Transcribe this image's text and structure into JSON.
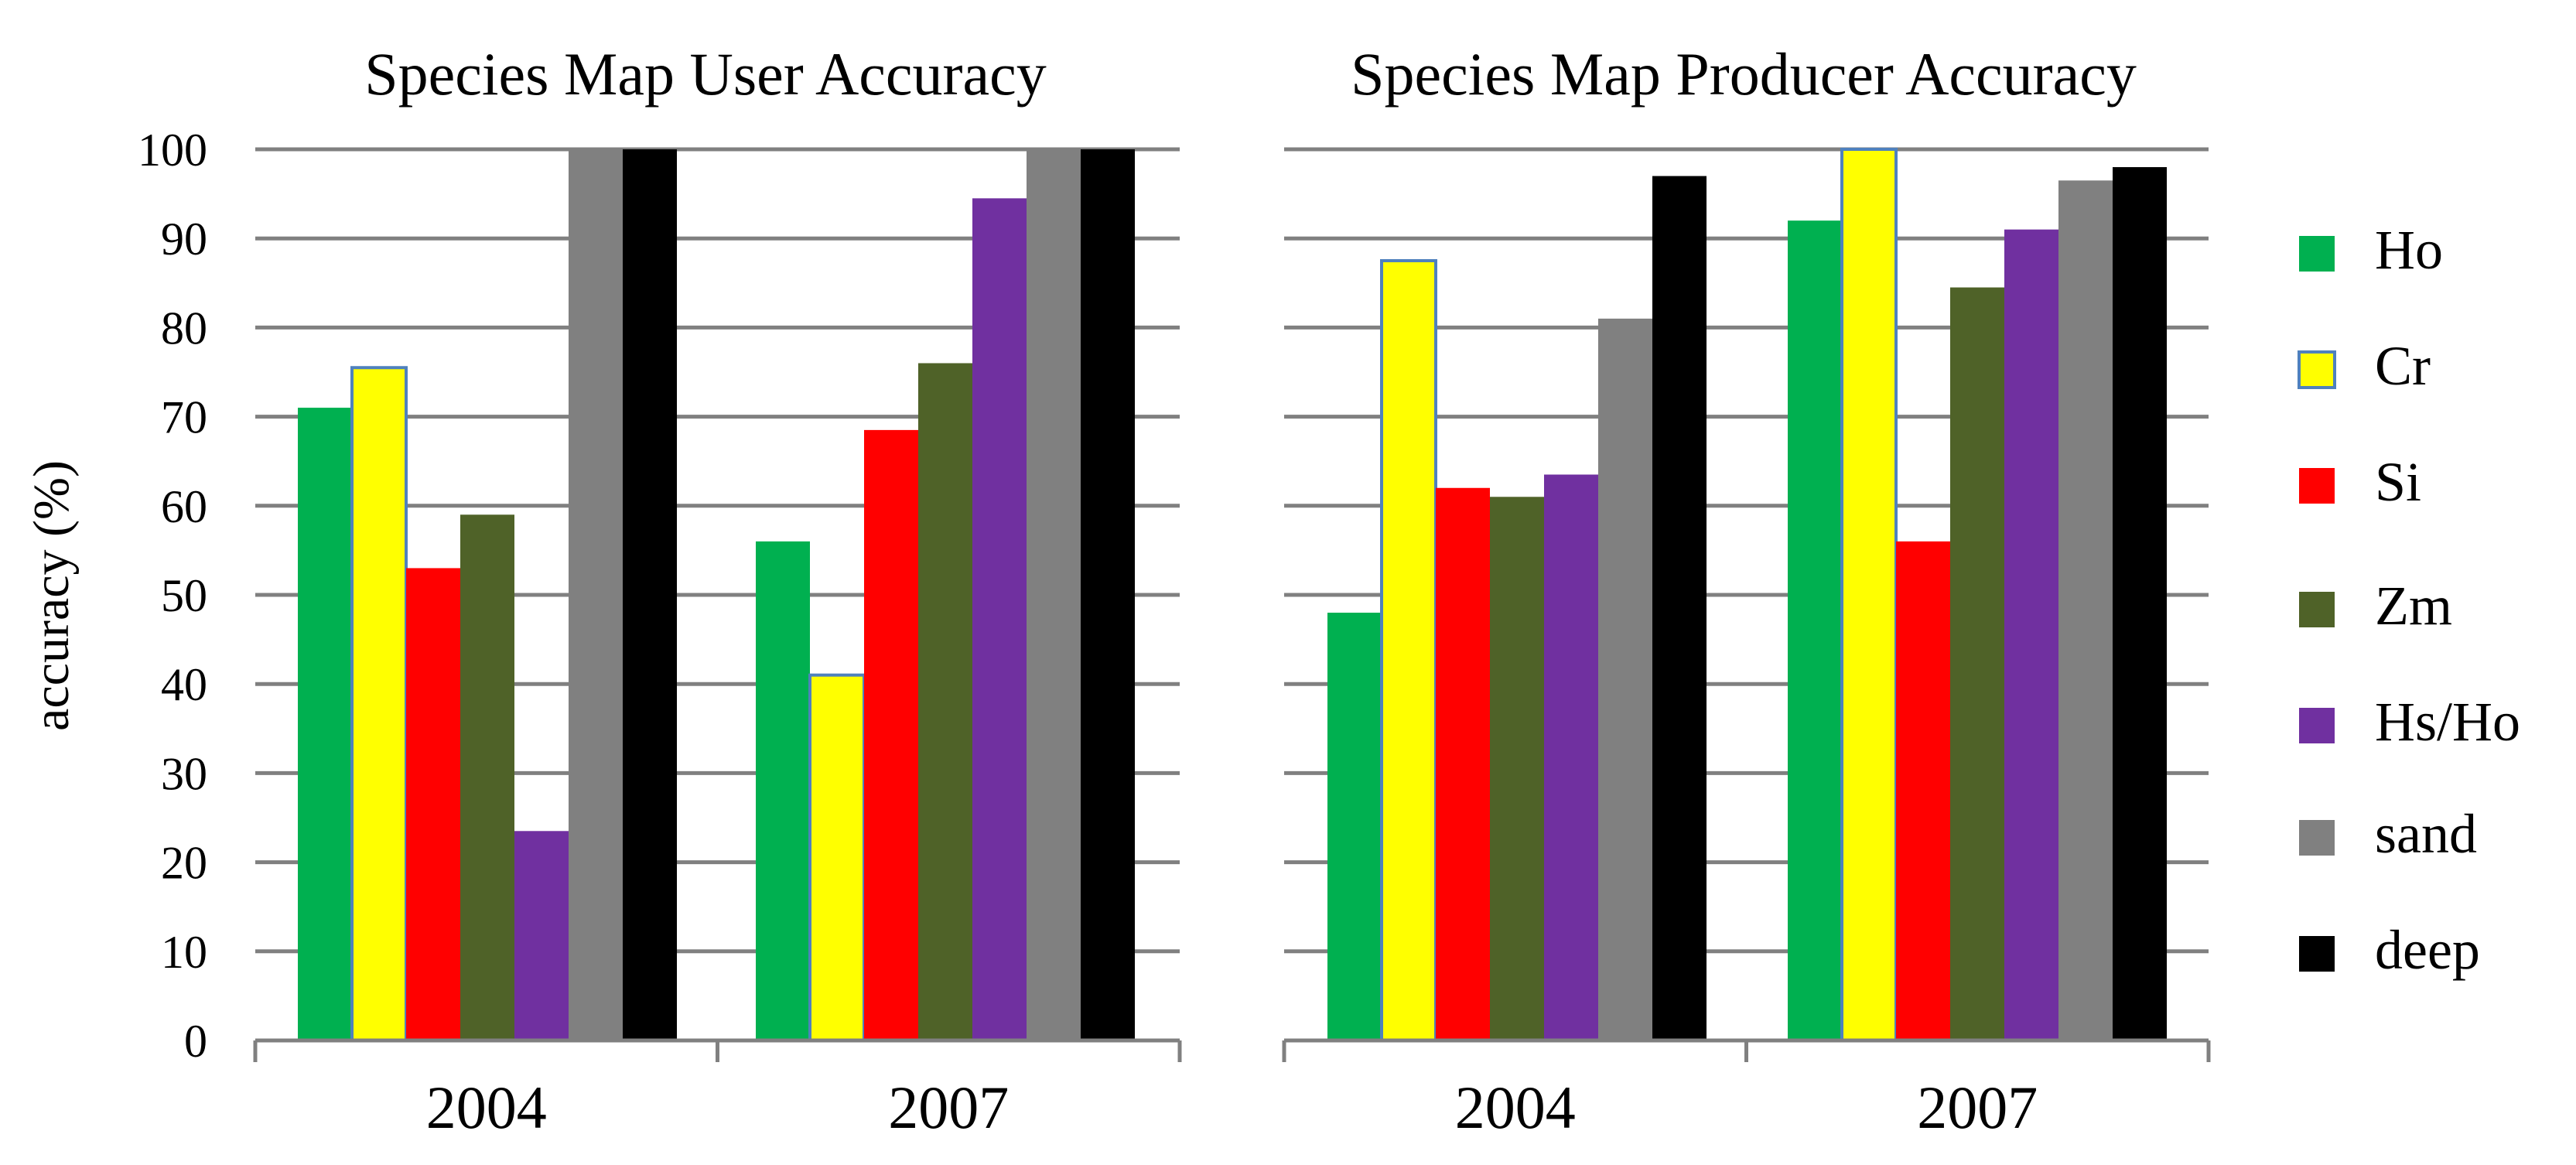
{
  "y_axis_label": "accuracy (%)",
  "legend": [
    {
      "name": "Ho",
      "color": "#00b050"
    },
    {
      "name": "Cr",
      "color": "#ffff00"
    },
    {
      "name": "Si",
      "color": "#ff0000"
    },
    {
      "name": "Zm",
      "color": "#4f6228"
    },
    {
      "name": "Hs/Ho",
      "color": "#7030a0"
    },
    {
      "name": "sand",
      "color": "#808080"
    },
    {
      "name": "deep",
      "color": "#000000"
    }
  ],
  "chart_data": [
    {
      "type": "bar",
      "title": "Species Map User Accuracy",
      "xlabel": "",
      "ylabel": "accuracy (%)",
      "ylim": [
        0,
        100
      ],
      "yticks": [
        0,
        10,
        20,
        30,
        40,
        50,
        60,
        70,
        80,
        90,
        100
      ],
      "grid": true,
      "categories": [
        "2004",
        "2007"
      ],
      "series": [
        {
          "name": "Ho",
          "color": "#00b050",
          "values": [
            71,
            56
          ]
        },
        {
          "name": "Cr",
          "color": "#ffff00",
          "values": [
            75.5,
            41
          ]
        },
        {
          "name": "Si",
          "color": "#ff0000",
          "values": [
            53,
            68.5
          ]
        },
        {
          "name": "Zm",
          "color": "#4f6228",
          "values": [
            59,
            76
          ]
        },
        {
          "name": "Hs/Ho",
          "color": "#7030a0",
          "values": [
            23.5,
            94.5
          ]
        },
        {
          "name": "sand",
          "color": "#808080",
          "values": [
            100,
            100
          ]
        },
        {
          "name": "deep",
          "color": "#000000",
          "values": [
            100,
            100
          ]
        }
      ]
    },
    {
      "type": "bar",
      "title": "Species Map Producer Accuracy",
      "xlabel": "",
      "ylabel": "",
      "ylim": [
        0,
        100
      ],
      "yticks": [
        0,
        10,
        20,
        30,
        40,
        50,
        60,
        70,
        80,
        90,
        100
      ],
      "grid": true,
      "categories": [
        "2004",
        "2007"
      ],
      "series": [
        {
          "name": "Ho",
          "color": "#00b050",
          "values": [
            48,
            92
          ]
        },
        {
          "name": "Cr",
          "color": "#ffff00",
          "values": [
            87.5,
            100
          ]
        },
        {
          "name": "Si",
          "color": "#ff0000",
          "values": [
            62,
            56
          ]
        },
        {
          "name": "Zm",
          "color": "#4f6228",
          "values": [
            61,
            84.5
          ]
        },
        {
          "name": "Hs/Ho",
          "color": "#7030a0",
          "values": [
            63.5,
            91
          ]
        },
        {
          "name": "sand",
          "color": "#808080",
          "values": [
            81,
            96.5
          ]
        },
        {
          "name": "deep",
          "color": "#000000",
          "values": [
            97,
            98
          ]
        }
      ]
    }
  ]
}
